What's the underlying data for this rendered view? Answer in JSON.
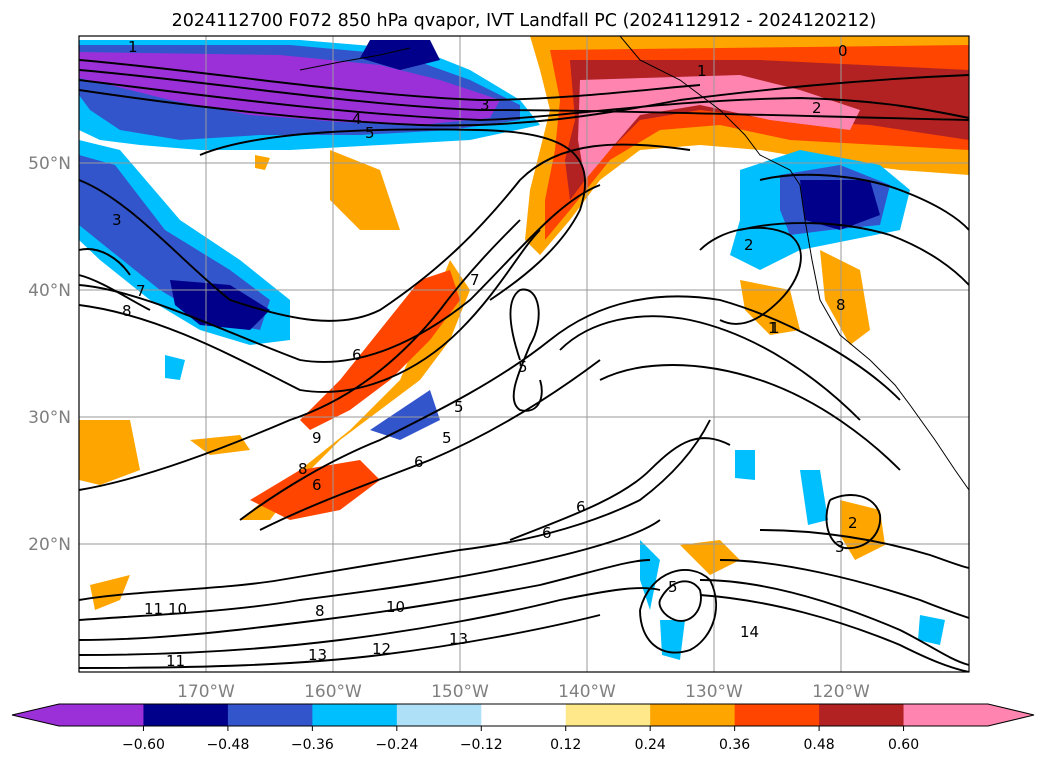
{
  "title": "2024112700 F072 850 hPa qvapor, IVT Landfall PC (2024112912 - 2024120212)",
  "map": {
    "lat_labels": [
      "50°N",
      "40°N",
      "30°N",
      "20°N"
    ],
    "lon_labels": [
      "170°W",
      "160°W",
      "150°W",
      "140°W",
      "130°W",
      "120°W"
    ],
    "contour_labels": [
      "1",
      "3",
      "4",
      "5",
      "3",
      "7",
      "8",
      "6",
      "9",
      "8",
      "6",
      "7",
      "5",
      "5",
      "5",
      "6",
      "6",
      "6",
      "11",
      "10",
      "11",
      "8",
      "10",
      "13",
      "12",
      "13",
      "14",
      "5",
      "2",
      "3",
      "1",
      "0",
      "1",
      "2",
      "2",
      "1",
      "8"
    ]
  },
  "colorbar": {
    "ticks": [
      "−0.60",
      "−0.48",
      "−0.36",
      "−0.24",
      "−0.12",
      "0.12",
      "0.24",
      "0.36",
      "0.48",
      "0.60"
    ],
    "colors": [
      "#9b30d9",
      "#00008b",
      "#3355cc",
      "#00bfff",
      "#aee0f8",
      "#ffffff",
      "#ffe88a",
      "#ffa500",
      "#ff4500",
      "#b22222",
      "#ff85b0"
    ]
  }
}
